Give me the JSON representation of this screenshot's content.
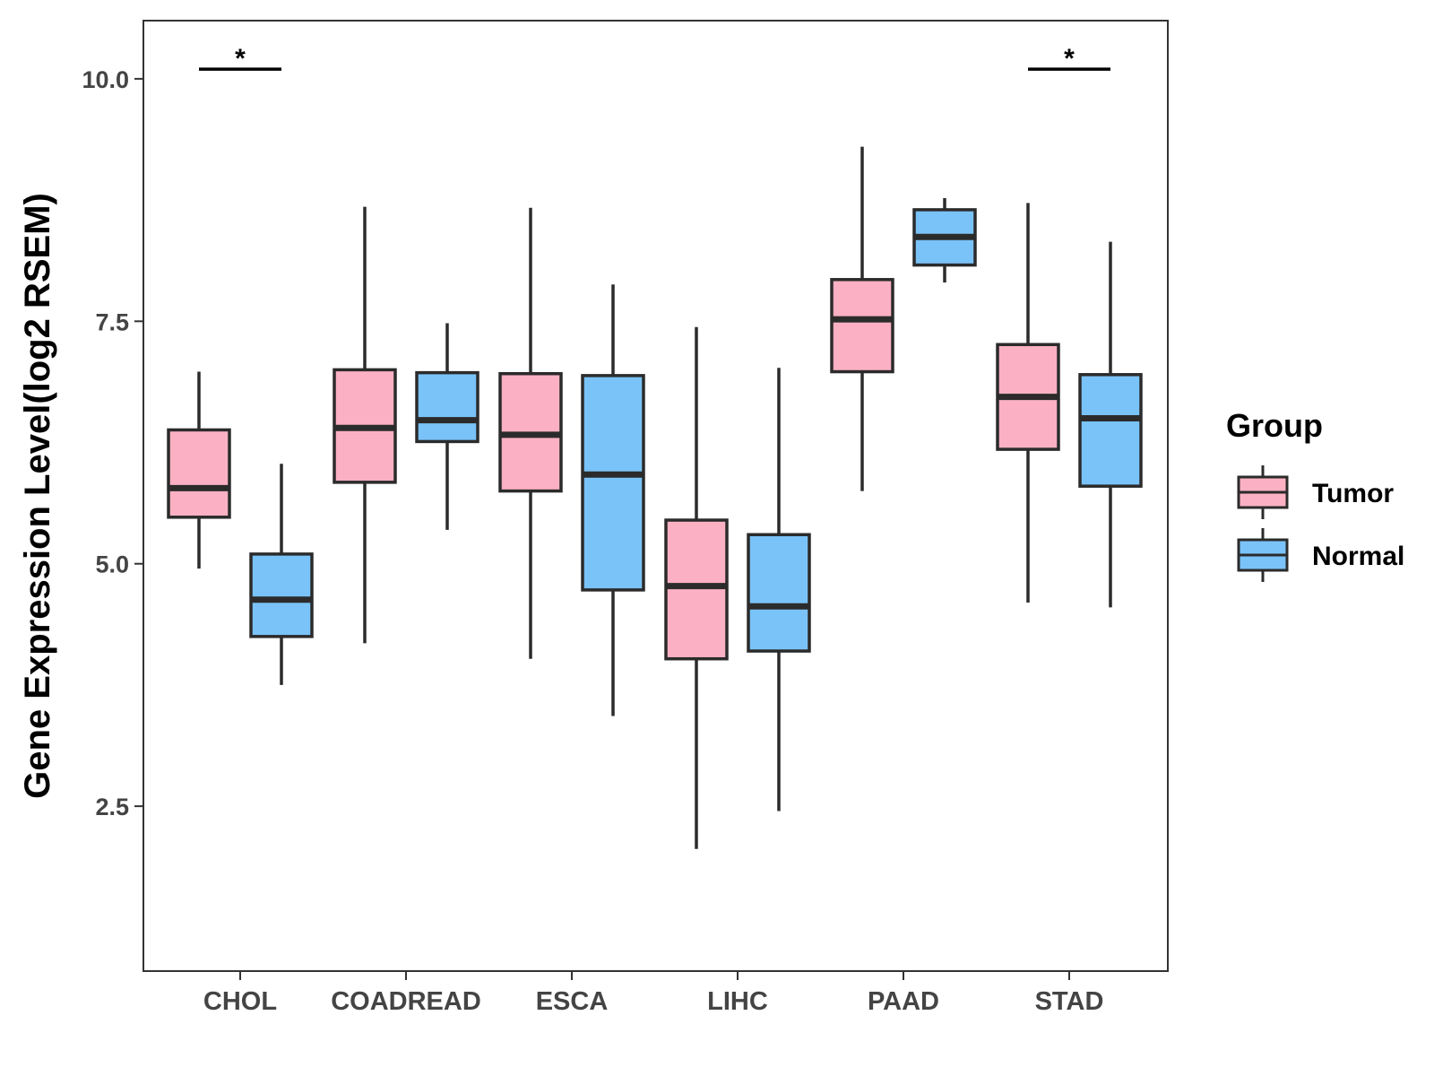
{
  "chart_data": {
    "type": "boxplot",
    "title": "",
    "xlabel": "",
    "ylabel": "Gene Expression Level(log2 RSEM)",
    "ylim": [
      0.8,
      10.6
    ],
    "yticks": [
      2.5,
      5.0,
      7.5,
      10.0
    ],
    "ytick_labels": [
      "2.5",
      "5.0",
      "7.5",
      "10.0"
    ],
    "categories": [
      "CHOL",
      "COADREAD",
      "ESCA",
      "LIHC",
      "PAAD",
      "STAD"
    ],
    "legend": {
      "title": "Group",
      "position": "right",
      "entries": [
        {
          "name": "Tumor",
          "color": "#FBB1C3"
        },
        {
          "name": "Normal",
          "color": "#7AC3F8"
        }
      ]
    },
    "series": [
      {
        "name": "Tumor",
        "color": "#FBB1C3",
        "boxes": [
          {
            "category": "CHOL",
            "min": 4.95,
            "q1": 5.48,
            "median": 5.78,
            "q3": 6.38,
            "max": 6.98
          },
          {
            "category": "COADREAD",
            "min": 4.18,
            "q1": 5.84,
            "median": 6.4,
            "q3": 7.0,
            "max": 8.68
          },
          {
            "category": "ESCA",
            "min": 4.02,
            "q1": 5.75,
            "median": 6.33,
            "q3": 6.96,
            "max": 8.67
          },
          {
            "category": "LIHC",
            "min": 2.06,
            "q1": 4.02,
            "median": 4.77,
            "q3": 5.45,
            "max": 7.44
          },
          {
            "category": "PAAD",
            "min": 5.75,
            "q1": 6.98,
            "median": 7.52,
            "q3": 7.93,
            "max": 9.3
          },
          {
            "category": "STAD",
            "min": 4.6,
            "q1": 6.18,
            "median": 6.72,
            "q3": 7.26,
            "max": 8.72
          }
        ]
      },
      {
        "name": "Normal",
        "color": "#7AC3F8",
        "boxes": [
          {
            "category": "CHOL",
            "min": 3.75,
            "q1": 4.25,
            "median": 4.63,
            "q3": 5.1,
            "max": 6.03
          },
          {
            "category": "COADREAD",
            "min": 5.35,
            "q1": 6.26,
            "median": 6.48,
            "q3": 6.97,
            "max": 7.48
          },
          {
            "category": "ESCA",
            "min": 3.43,
            "q1": 4.73,
            "median": 5.92,
            "q3": 6.94,
            "max": 7.88
          },
          {
            "category": "LIHC",
            "min": 2.45,
            "q1": 4.1,
            "median": 4.56,
            "q3": 5.3,
            "max": 7.02
          },
          {
            "category": "PAAD",
            "min": 7.9,
            "q1": 8.08,
            "median": 8.37,
            "q3": 8.65,
            "max": 8.77
          },
          {
            "category": "STAD",
            "min": 4.55,
            "q1": 5.8,
            "median": 6.5,
            "q3": 6.95,
            "max": 8.32
          }
        ]
      }
    ],
    "annotations": [
      {
        "category": "CHOL",
        "text": "*",
        "y": 10.1
      },
      {
        "category": "STAD",
        "text": "*",
        "y": 10.1
      }
    ]
  }
}
